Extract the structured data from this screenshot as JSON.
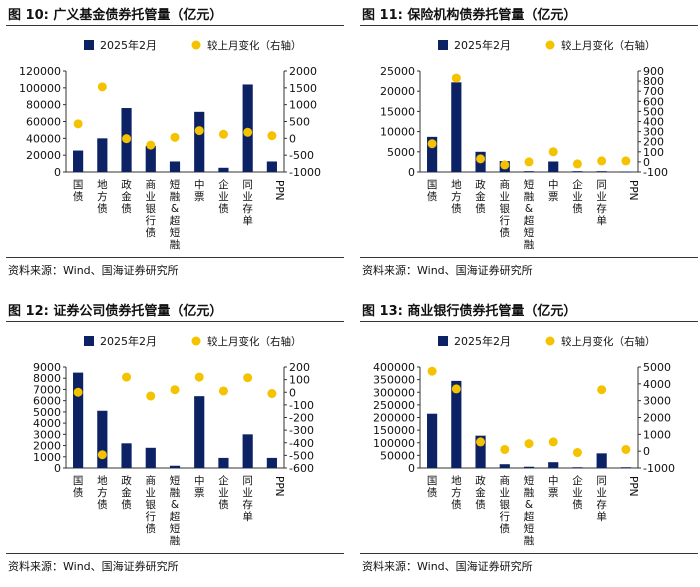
{
  "colors": {
    "bar": "#0c2264",
    "dot": "#f5c200",
    "axis": "#333333"
  },
  "legend": {
    "bar_label": "2025年2月",
    "dot_label": "较上月变化（右轴）"
  },
  "chart_data": [
    {
      "type": "bar",
      "title": "图 10:  广义基金债券托管量（亿元）",
      "source": "资料来源：Wind、国海证券研究所",
      "categories": [
        "国债",
        "地方债",
        "政金债",
        "商业银行债",
        "短融&超短融",
        "中票",
        "企业债",
        "同业存单",
        "PPN"
      ],
      "series": [
        {
          "name": "2025年2月",
          "axis": "left",
          "values": [
            25500,
            40000,
            76000,
            31000,
            12500,
            71500,
            5000,
            104000,
            12500
          ]
        },
        {
          "name": "较上月变化（右轴）",
          "axis": "right",
          "values": [
            430,
            1530,
            -10,
            -200,
            30,
            230,
            120,
            180,
            80
          ]
        }
      ],
      "ylim": [
        0,
        120000
      ],
      "yticks": [
        "0",
        "20000",
        "40000",
        "60000",
        "80000",
        "100000",
        "120000"
      ],
      "y2lim": [
        -1000,
        2000
      ],
      "y2ticks": [
        "-1000",
        "-500",
        "0",
        "500",
        "1000",
        "1500",
        "2000"
      ]
    },
    {
      "type": "bar",
      "title": "图 11:  保险机构债券托管量（亿元）",
      "source": "资料来源：Wind、国海证券研究所",
      "categories": [
        "国债",
        "地方债",
        "政金债",
        "商业银行债",
        "短融&超短融",
        "中票",
        "企业债",
        "同业存单",
        "PPN"
      ],
      "series": [
        {
          "name": "2025年2月",
          "axis": "left",
          "values": [
            8700,
            22200,
            5000,
            2700,
            200,
            2600,
            200,
            200,
            100
          ]
        },
        {
          "name": "较上月变化（右轴）",
          "axis": "right",
          "values": [
            180,
            830,
            30,
            -30,
            0,
            100,
            -20,
            10,
            10
          ]
        }
      ],
      "ylim": [
        0,
        25000
      ],
      "yticks": [
        "0",
        "5000",
        "10000",
        "15000",
        "20000",
        "25000"
      ],
      "y2lim": [
        -100,
        900
      ],
      "y2ticks": [
        "-100",
        "0",
        "100",
        "200",
        "300",
        "400",
        "500",
        "600",
        "700",
        "800",
        "900"
      ]
    },
    {
      "type": "bar",
      "title": "图 12:  证券公司债券托管量（亿元）",
      "source": "资料来源：Wind、国海证券研究所",
      "categories": [
        "国债",
        "地方债",
        "政金债",
        "商业银行债",
        "短融&超短融",
        "中票",
        "企业债",
        "同业存单",
        "PPN"
      ],
      "series": [
        {
          "name": "2025年2月",
          "axis": "left",
          "values": [
            8500,
            5100,
            2200,
            1800,
            200,
            6400,
            900,
            3000,
            900
          ]
        },
        {
          "name": "较上月变化（右轴）",
          "axis": "right",
          "values": [
            0,
            -495,
            120,
            -30,
            20,
            120,
            10,
            115,
            -10
          ]
        }
      ],
      "ylim": [
        0,
        9000
      ],
      "yticks": [
        "0",
        "1000",
        "2000",
        "3000",
        "4000",
        "5000",
        "6000",
        "7000",
        "8000",
        "9000"
      ],
      "y2lim": [
        -600,
        200
      ],
      "y2ticks": [
        "-600",
        "-500",
        "-400",
        "-300",
        "-200",
        "-100",
        "0",
        "100",
        "200"
      ]
    },
    {
      "type": "bar",
      "title": "图 13:  商业银行债券托管量（亿元）",
      "source": "资料来源：Wind、国海证券研究所",
      "categories": [
        "国债",
        "地方债",
        "政金债",
        "商业银行债",
        "短融&超短融",
        "中票",
        "企业债",
        "同业存单",
        "PPN"
      ],
      "series": [
        {
          "name": "2025年2月",
          "axis": "left",
          "values": [
            215000,
            345000,
            128000,
            15000,
            5000,
            23000,
            3000,
            58000,
            3000
          ]
        },
        {
          "name": "较上月变化（右轴）",
          "axis": "right",
          "values": [
            4750,
            3700,
            550,
            100,
            450,
            550,
            -80,
            3650,
            100
          ]
        }
      ],
      "ylim": [
        0,
        400000
      ],
      "yticks": [
        "0",
        "50000",
        "100000",
        "150000",
        "200000",
        "250000",
        "300000",
        "350000",
        "400000"
      ],
      "y2lim": [
        -1000,
        5000
      ],
      "y2ticks": [
        "-1000",
        "0",
        "1000",
        "2000",
        "3000",
        "4000",
        "5000"
      ]
    }
  ]
}
